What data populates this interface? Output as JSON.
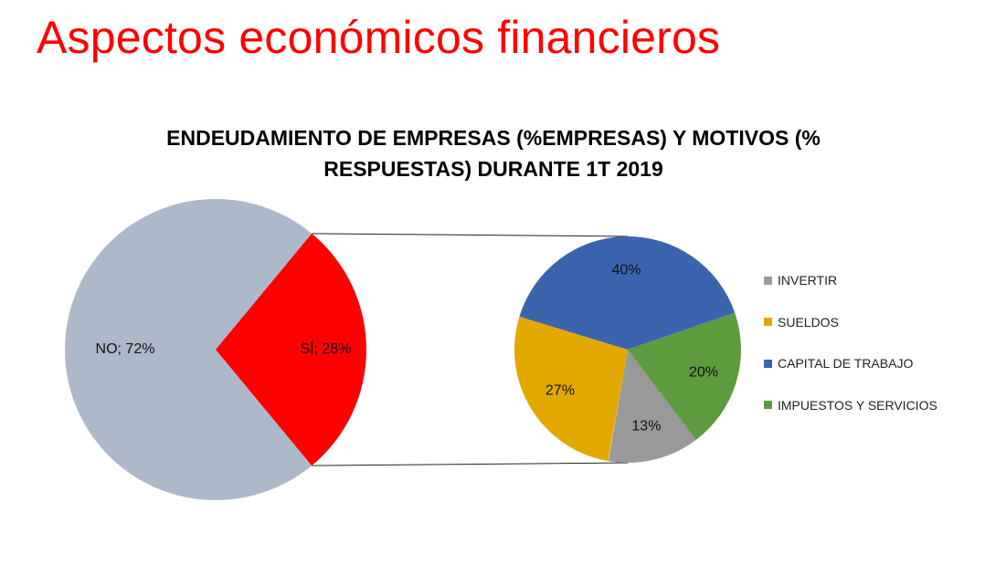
{
  "slide": {
    "title": "Aspectos económicos financieros"
  },
  "chart_data": {
    "type": "pie",
    "title_line1": "ENDEUDAMIENTO DE EMPRESAS (%EMPRESAS) Y MOTIVOS (%",
    "title_line2": "RESPUESTAS) DURANTE 1T 2019",
    "main": {
      "slices": [
        {
          "label": "NO",
          "value": 72,
          "data_label": "NO; 72%",
          "color": "#adb9ca"
        },
        {
          "label": "SÍ",
          "value": 28,
          "data_label": "SÍ; 28%",
          "color": "#ff0000"
        }
      ]
    },
    "breakdown": {
      "of": "SÍ",
      "slices": [
        {
          "label": "INVERTIR",
          "value": 13,
          "data_label": "13%",
          "color": "#999999"
        },
        {
          "label": "SUELDOS",
          "value": 27,
          "data_label": "27%",
          "color": "#e3a800"
        },
        {
          "label": "CAPITAL DE TRABAJO",
          "value": 40,
          "data_label": "40%",
          "color": "#3c64ae"
        },
        {
          "label": "IMPUESTOS Y SERVICIOS",
          "value": 20,
          "data_label": "20%",
          "color": "#5e9b3e"
        }
      ]
    },
    "legend": {
      "position": "right",
      "entries": [
        "INVERTIR",
        "SUELDOS",
        "CAPITAL DE TRABAJO",
        "IMPUESTOS Y SERVICIOS"
      ]
    }
  }
}
